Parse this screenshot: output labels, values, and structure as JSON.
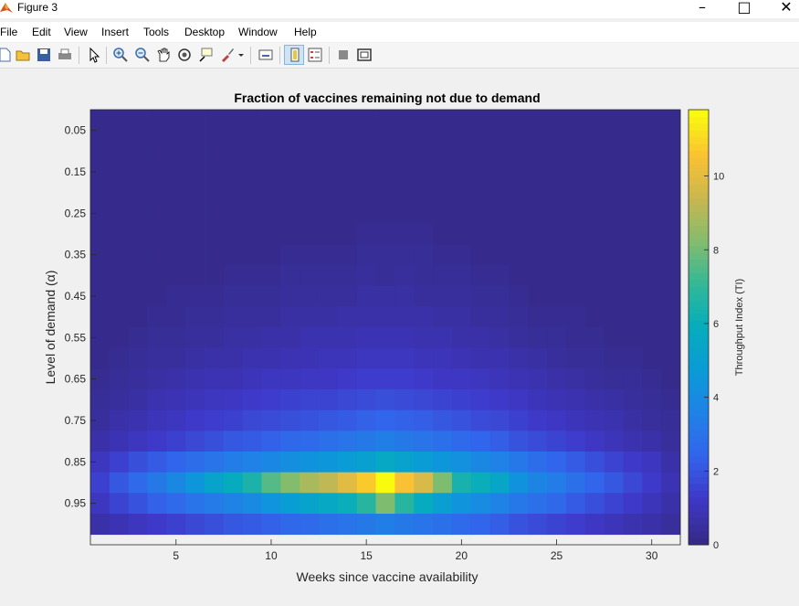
{
  "window": {
    "title": "Figure 3"
  },
  "menu": [
    "File",
    "Edit",
    "View",
    "Insert",
    "Tools",
    "Desktop",
    "Window",
    "Help"
  ],
  "toolbar_icons": [
    "new-figure-icon",
    "open-file-icon",
    "save-icon",
    "print-icon",
    "pointer-icon",
    "zoom-in-icon",
    "zoom-out-icon",
    "pan-icon",
    "rotate-icon",
    "data-cursor-icon",
    "brush-icon",
    "brush-dropdown-icon",
    "link-plot-icon",
    "colorbar-icon",
    "legend-icon",
    "hide-plot-tools-icon",
    "show-plot-tools-icon"
  ],
  "chart_data": {
    "type": "heatmap",
    "title": "Fraction of vaccines remaining not due to demand",
    "xlabel": "Weeks since vaccine availability",
    "ylabel": "Level of demand (α)",
    "colorbar_label": "Throughput Index (TI)",
    "x_ticks": [
      5,
      10,
      15,
      20,
      25,
      30
    ],
    "y_ticks": [
      "0.05",
      "0.15",
      "0.25",
      "0.35",
      "0.45",
      "0.55",
      "0.65",
      "0.75",
      "0.85",
      "0.95"
    ],
    "colorbar_ticks": [
      0,
      2,
      4,
      6,
      8,
      10
    ],
    "xlim": [
      0.5,
      31.5
    ],
    "ylim": [
      0,
      1.05
    ],
    "clim": [
      0,
      11.8
    ],
    "colormap": "parula",
    "x": [
      1,
      2,
      3,
      4,
      5,
      6,
      7,
      8,
      9,
      10,
      11,
      12,
      13,
      14,
      15,
      16,
      17,
      18,
      19,
      20,
      21,
      22,
      23,
      24,
      25,
      26,
      27,
      28,
      29,
      30,
      31
    ],
    "y": [
      0.0,
      0.05,
      0.1,
      0.15,
      0.2,
      0.25,
      0.3,
      0.35,
      0.4,
      0.45,
      0.5,
      0.55,
      0.6,
      0.65,
      0.7,
      0.75,
      0.8,
      0.85,
      0.9,
      0.95,
      1.0
    ],
    "z": [
      [
        0.1,
        0.1,
        0.1,
        0.1,
        0.1,
        0.1,
        0.1,
        0.1,
        0.1,
        0.1,
        0.1,
        0.1,
        0.1,
        0.1,
        0.1,
        0.1,
        0.1,
        0.1,
        0.1,
        0.1,
        0.1,
        0.1,
        0.1,
        0.1,
        0.1,
        0.1,
        0.1,
        0.1,
        0.1,
        0.1,
        0.1
      ],
      [
        0.1,
        0.1,
        0.1,
        0.1,
        0.1,
        0.1,
        0.1,
        0.1,
        0.1,
        0.1,
        0.1,
        0.1,
        0.1,
        0.1,
        0.1,
        0.1,
        0.1,
        0.1,
        0.1,
        0.1,
        0.1,
        0.1,
        0.1,
        0.1,
        0.1,
        0.1,
        0.1,
        0.1,
        0.1,
        0.1,
        0.1
      ],
      [
        0.1,
        0.1,
        0.1,
        0.1,
        0.1,
        0.1,
        0.1,
        0.1,
        0.1,
        0.1,
        0.1,
        0.1,
        0.1,
        0.1,
        0.1,
        0.1,
        0.1,
        0.1,
        0.1,
        0.1,
        0.1,
        0.1,
        0.1,
        0.1,
        0.1,
        0.1,
        0.1,
        0.1,
        0.1,
        0.1,
        0.1
      ],
      [
        0.1,
        0.1,
        0.1,
        0.1,
        0.1,
        0.1,
        0.1,
        0.1,
        0.1,
        0.1,
        0.1,
        0.1,
        0.1,
        0.1,
        0.1,
        0.1,
        0.1,
        0.1,
        0.1,
        0.1,
        0.1,
        0.1,
        0.1,
        0.1,
        0.1,
        0.1,
        0.1,
        0.1,
        0.1,
        0.1,
        0.1
      ],
      [
        0.1,
        0.1,
        0.1,
        0.1,
        0.1,
        0.1,
        0.1,
        0.1,
        0.1,
        0.1,
        0.1,
        0.1,
        0.1,
        0.1,
        0.1,
        0.1,
        0.1,
        0.1,
        0.1,
        0.1,
        0.1,
        0.1,
        0.1,
        0.1,
        0.1,
        0.1,
        0.1,
        0.1,
        0.1,
        0.1,
        0.1
      ],
      [
        0.1,
        0.1,
        0.1,
        0.1,
        0.1,
        0.1,
        0.1,
        0.1,
        0.1,
        0.1,
        0.1,
        0.1,
        0.1,
        0.1,
        0.1,
        0.1,
        0.1,
        0.1,
        0.1,
        0.1,
        0.1,
        0.1,
        0.1,
        0.1,
        0.1,
        0.1,
        0.1,
        0.1,
        0.1,
        0.1,
        0.1
      ],
      [
        0.1,
        0.1,
        0.1,
        0.1,
        0.1,
        0.1,
        0.1,
        0.1,
        0.1,
        0.1,
        0.1,
        0.1,
        0.1,
        0.1,
        0.2,
        0.2,
        0.2,
        0.2,
        0.1,
        0.1,
        0.1,
        0.1,
        0.1,
        0.1,
        0.1,
        0.1,
        0.1,
        0.1,
        0.1,
        0.1,
        0.1
      ],
      [
        0.1,
        0.1,
        0.1,
        0.1,
        0.1,
        0.1,
        0.1,
        0.1,
        0.1,
        0.1,
        0.2,
        0.2,
        0.2,
        0.2,
        0.3,
        0.3,
        0.3,
        0.3,
        0.2,
        0.2,
        0.1,
        0.1,
        0.1,
        0.1,
        0.1,
        0.1,
        0.1,
        0.1,
        0.1,
        0.1,
        0.1
      ],
      [
        0.1,
        0.1,
        0.1,
        0.1,
        0.1,
        0.1,
        0.1,
        0.2,
        0.2,
        0.2,
        0.3,
        0.3,
        0.3,
        0.3,
        0.4,
        0.3,
        0.4,
        0.3,
        0.3,
        0.3,
        0.2,
        0.2,
        0.1,
        0.1,
        0.1,
        0.1,
        0.1,
        0.1,
        0.1,
        0.1,
        0.1
      ],
      [
        0.1,
        0.1,
        0.1,
        0.1,
        0.2,
        0.2,
        0.2,
        0.3,
        0.3,
        0.3,
        0.4,
        0.4,
        0.4,
        0.4,
        0.5,
        0.5,
        0.5,
        0.4,
        0.4,
        0.4,
        0.3,
        0.3,
        0.2,
        0.1,
        0.1,
        0.1,
        0.1,
        0.1,
        0.1,
        0.1,
        0.1
      ],
      [
        0.1,
        0.1,
        0.1,
        0.2,
        0.2,
        0.3,
        0.3,
        0.4,
        0.4,
        0.4,
        0.5,
        0.5,
        0.5,
        0.6,
        0.6,
        0.6,
        0.6,
        0.6,
        0.5,
        0.5,
        0.4,
        0.4,
        0.3,
        0.2,
        0.2,
        0.2,
        0.1,
        0.1,
        0.1,
        0.1,
        0.1
      ],
      [
        0.1,
        0.1,
        0.2,
        0.3,
        0.3,
        0.4,
        0.4,
        0.5,
        0.5,
        0.6,
        0.6,
        0.7,
        0.7,
        0.7,
        0.8,
        0.8,
        0.8,
        0.7,
        0.7,
        0.6,
        0.6,
        0.5,
        0.4,
        0.3,
        0.3,
        0.2,
        0.2,
        0.1,
        0.1,
        0.1,
        0.1
      ],
      [
        0.1,
        0.2,
        0.3,
        0.4,
        0.4,
        0.5,
        0.6,
        0.6,
        0.7,
        0.7,
        0.8,
        0.8,
        0.9,
        0.9,
        1.0,
        1.0,
        1.0,
        0.9,
        0.9,
        0.8,
        0.7,
        0.7,
        0.6,
        0.5,
        0.4,
        0.3,
        0.3,
        0.2,
        0.2,
        0.1,
        0.1
      ],
      [
        0.2,
        0.3,
        0.4,
        0.5,
        0.6,
        0.7,
        0.8,
        0.8,
        0.9,
        1.0,
        1.0,
        1.1,
        1.1,
        1.2,
        1.3,
        1.3,
        1.3,
        1.2,
        1.1,
        1.1,
        1.0,
        0.9,
        0.8,
        0.7,
        0.6,
        0.5,
        0.4,
        0.3,
        0.3,
        0.2,
        0.1
      ],
      [
        0.3,
        0.4,
        0.5,
        0.7,
        0.8,
        0.9,
        1.0,
        1.1,
        1.2,
        1.3,
        1.4,
        1.5,
        1.5,
        1.6,
        1.7,
        1.8,
        1.7,
        1.6,
        1.5,
        1.4,
        1.3,
        1.2,
        1.1,
        0.9,
        0.8,
        0.7,
        0.6,
        0.5,
        0.4,
        0.3,
        0.2
      ],
      [
        0.4,
        0.6,
        0.7,
        0.9,
        1.0,
        1.2,
        1.3,
        1.4,
        1.6,
        1.7,
        1.8,
        1.9,
        2.0,
        2.1,
        2.3,
        2.4,
        2.3,
        2.2,
        2.0,
        1.9,
        1.7,
        1.6,
        1.4,
        1.2,
        1.1,
        0.9,
        0.8,
        0.7,
        0.5,
        0.4,
        0.3
      ],
      [
        0.6,
        0.8,
        1.0,
        1.2,
        1.4,
        1.6,
        1.8,
        2.0,
        2.1,
        2.3,
        2.5,
        2.6,
        2.8,
        3.0,
        3.2,
        3.4,
        3.2,
        3.0,
        2.8,
        2.6,
        2.4,
        2.2,
        1.9,
        1.7,
        1.5,
        1.3,
        1.1,
        0.9,
        0.7,
        0.6,
        0.4
      ],
      [
        1.0,
        1.4,
        1.8,
        2.1,
        2.4,
        2.7,
        3.0,
        3.3,
        3.5,
        3.8,
        4.1,
        4.3,
        4.5,
        4.8,
        5.1,
        5.6,
        5.2,
        4.8,
        4.5,
        4.2,
        3.8,
        3.5,
        3.1,
        2.7,
        2.4,
        2.1,
        1.8,
        1.5,
        1.2,
        1.0,
        0.6
      ],
      [
        1.4,
        2.0,
        2.6,
        3.2,
        3.8,
        4.5,
        5.3,
        5.9,
        6.5,
        7.6,
        8.3,
        8.9,
        9.3,
        10.0,
        10.8,
        11.8,
        10.6,
        9.8,
        8.2,
        6.4,
        6.0,
        5.5,
        4.3,
        3.7,
        3.3,
        2.8,
        2.4,
        2.0,
        1.6,
        1.2,
        0.8
      ],
      [
        1.0,
        1.5,
        1.9,
        2.3,
        2.6,
        3.0,
        3.3,
        3.6,
        3.9,
        4.4,
        4.9,
        5.3,
        5.6,
        6.0,
        6.8,
        8.2,
        6.8,
        5.8,
        5.0,
        4.4,
        4.0,
        3.6,
        3.1,
        2.8,
        2.5,
        2.1,
        1.8,
        1.5,
        1.2,
        0.9,
        0.6
      ],
      [
        0.6,
        0.8,
        1.0,
        1.2,
        1.4,
        1.6,
        1.8,
        2.0,
        2.1,
        2.3,
        2.5,
        2.6,
        2.8,
        3.0,
        3.2,
        3.4,
        3.2,
        3.0,
        2.8,
        2.6,
        2.4,
        2.2,
        1.9,
        1.7,
        1.5,
        1.3,
        1.1,
        0.9,
        0.7,
        0.6,
        0.4
      ]
    ]
  }
}
